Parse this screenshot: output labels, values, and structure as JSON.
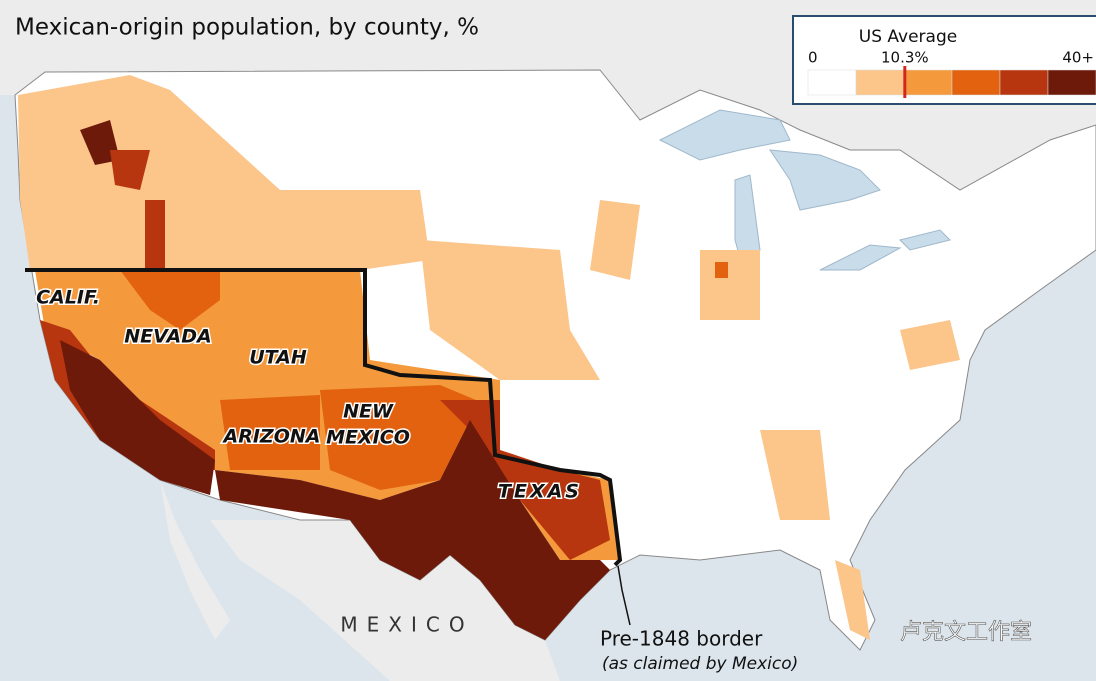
{
  "title": "Mexican-origin population, by county, %",
  "legend": {
    "title": "US Average",
    "ticks": [
      {
        "value": 0,
        "label": "0"
      },
      {
        "value": 10.3,
        "label": "10.3%"
      },
      {
        "value": 40,
        "label": "40+"
      }
    ],
    "colors": [
      "#ffffff",
      "#fcc58a",
      "#f49a3c",
      "#e2620f",
      "#b8360f",
      "#6e1a0a"
    ],
    "marker_color": "#d0281e"
  },
  "map": {
    "state_labels": [
      "CALIF.",
      "NEVADA",
      "UTAH",
      "ARIZONA",
      "NEW",
      "MEXICO",
      "TEXAS"
    ],
    "country_label": "MEXICO",
    "annotation": {
      "text": "Pre-1848 border",
      "note": "(as claimed by Mexico)"
    }
  },
  "watermark": "卢克文工作室"
}
